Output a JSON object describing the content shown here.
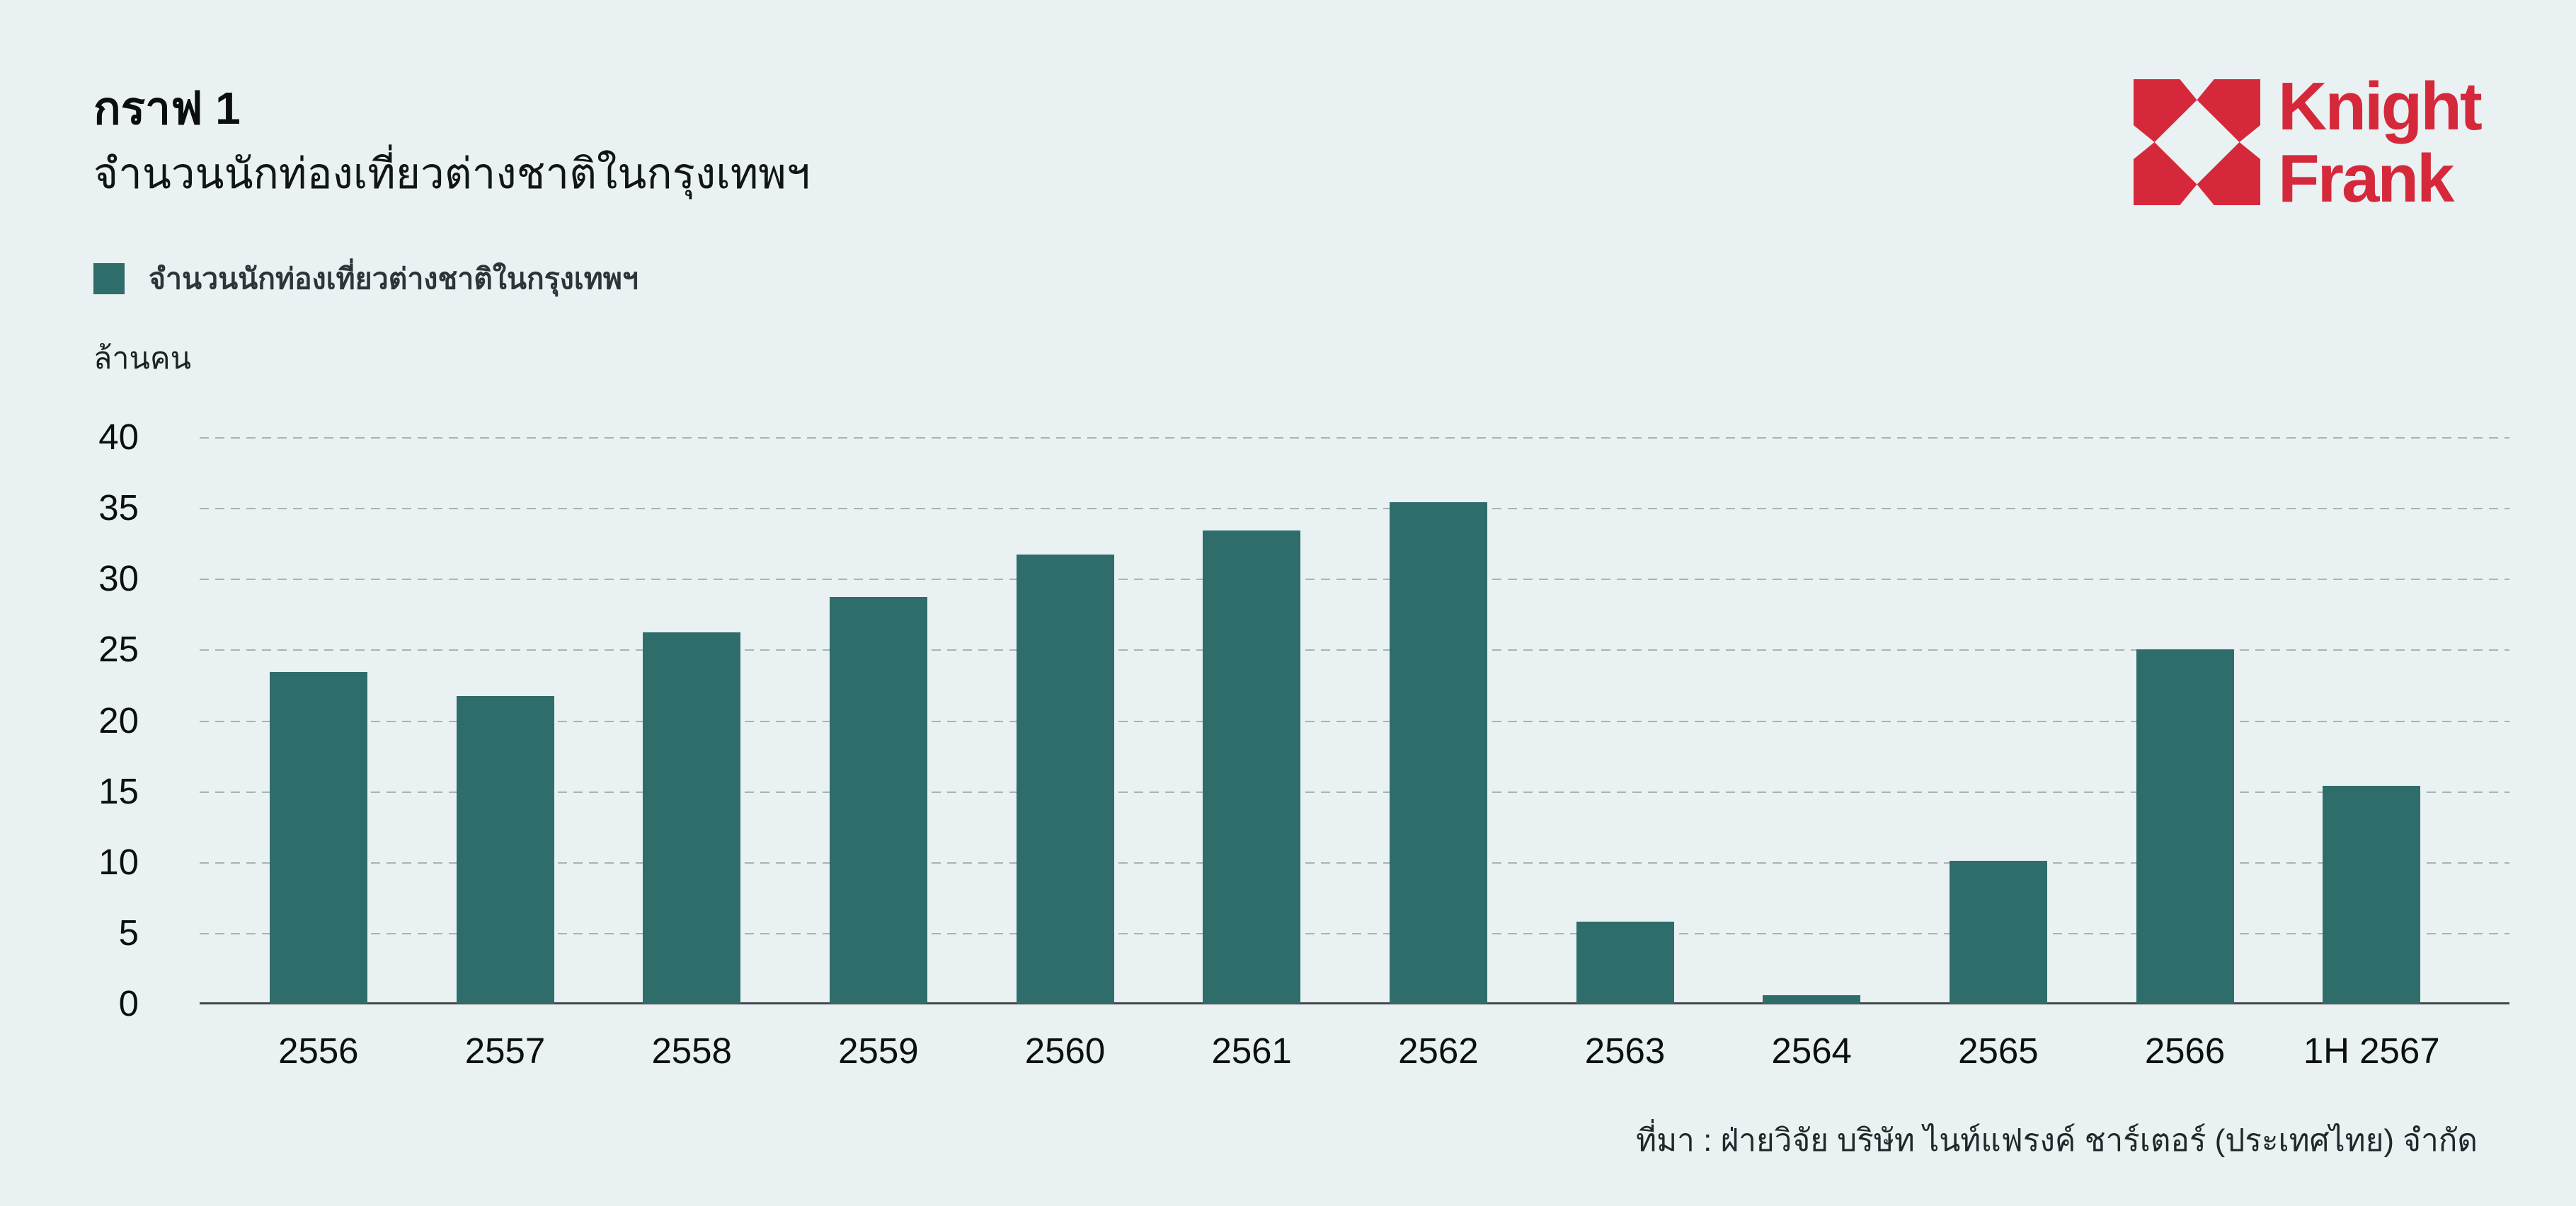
{
  "page": {
    "background_color": "#E9F1F2"
  },
  "header": {
    "title": "กราฟ 1",
    "subtitle": "จำนวนนักท่องเที่ยวต่างชาติในกรุงเทพฯ"
  },
  "logo": {
    "line1": "Knight",
    "line2": "Frank",
    "color": "#D5293B"
  },
  "legend": {
    "label": "จำนวนนักท่องเที่ยวต่างชาติในกรุงเทพฯ",
    "swatch_color": "#2E6D6A"
  },
  "axis": {
    "unit_label": "ล้านคน"
  },
  "source": "ที่มา : ฝ่ายวิจัย บริษัท ไนท์แฟรงค์ ชาร์เตอร์ (ประเทศไทย) จำกัด",
  "chart_data": {
    "type": "bar",
    "title": "จำนวนนักท่องเที่ยวต่างชาติในกรุงเทพฯ",
    "ylabel": "ล้านคน",
    "categories": [
      "2556",
      "2557",
      "2558",
      "2559",
      "2560",
      "2561",
      "2562",
      "2563",
      "2564",
      "2565",
      "2566",
      "1H 2567"
    ],
    "values": [
      23.4,
      21.7,
      26.2,
      28.7,
      31.7,
      33.4,
      35.4,
      5.8,
      0.6,
      10.1,
      25.0,
      15.4
    ],
    "bar_color": "#2E6D6A",
    "ylim": [
      0,
      40
    ],
    "yticks": [
      40,
      35,
      30,
      25,
      20,
      15,
      10,
      5,
      0
    ],
    "grid": "horizontal-dashed",
    "legend_position": "top-left"
  }
}
